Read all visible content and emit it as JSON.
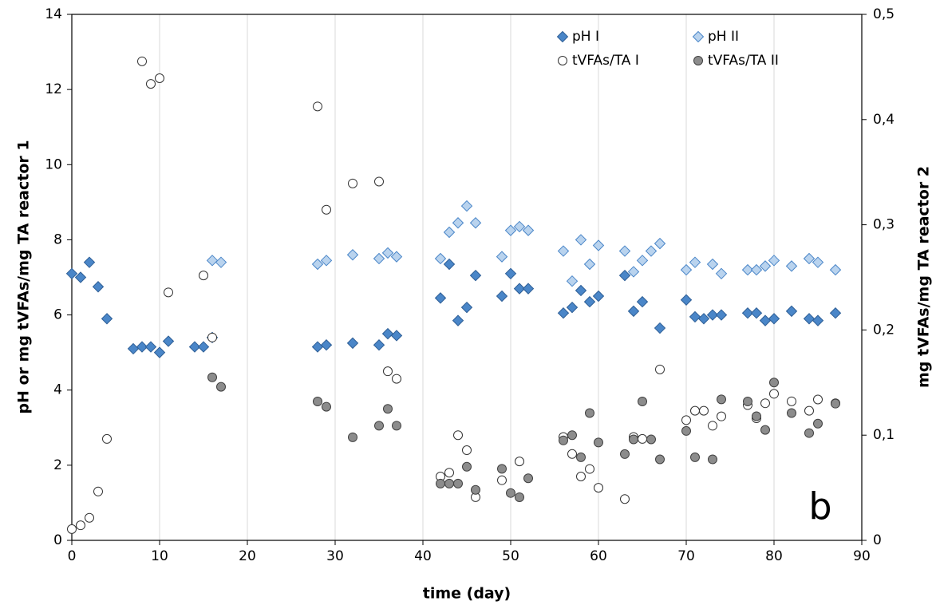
{
  "chart_data": {
    "type": "scatter",
    "xlabel": "time (day)",
    "ylabel": "pH or mg tVFAs/mg TA reactor 1",
    "y2label": "mg tVFAs/mg TA reactor 2",
    "annotation": "b",
    "xlim": [
      0,
      90
    ],
    "xticks": [
      0,
      10,
      20,
      30,
      40,
      50,
      60,
      70,
      80,
      90
    ],
    "ylim": [
      0,
      14
    ],
    "yticks": [
      0,
      2,
      4,
      6,
      8,
      10,
      12,
      14
    ],
    "y2lim": [
      0,
      0.5
    ],
    "y2ticks": [
      0,
      {
        "value": 0.1,
        "label": "0,1"
      },
      {
        "value": 0.2,
        "label": "0,2"
      },
      {
        "value": 0.3,
        "label": "0,3"
      },
      {
        "value": 0.4,
        "label": "0,4"
      },
      {
        "value": 0.5,
        "label": "0,5"
      }
    ],
    "grid": "x",
    "legend": "upper right",
    "series": [
      {
        "name": "pH I",
        "marker": "diamond",
        "color": "#4a86c8",
        "edgecolor": "#2f5f96",
        "x": [
          0,
          1,
          2,
          3,
          4,
          7,
          8,
          9,
          10,
          11,
          14,
          15,
          16,
          28,
          29,
          32,
          35,
          36,
          37,
          42,
          43,
          44,
          45,
          46,
          49,
          50,
          51,
          52,
          56,
          57,
          58,
          59,
          60,
          63,
          64,
          65,
          67,
          70,
          71,
          72,
          73,
          74,
          77,
          78,
          79,
          80,
          82,
          84,
          85,
          87
        ],
        "values": [
          7.1,
          7.0,
          7.4,
          6.75,
          5.9,
          5.1,
          5.15,
          5.15,
          5.0,
          5.3,
          5.15,
          5.15,
          5.4,
          5.15,
          5.2,
          5.25,
          5.2,
          5.5,
          5.45,
          6.45,
          7.35,
          5.85,
          6.2,
          7.05,
          6.5,
          7.1,
          6.7,
          6.7,
          6.05,
          6.2,
          6.65,
          6.35,
          6.5,
          7.05,
          6.1,
          6.35,
          5.65,
          6.4,
          5.95,
          5.9,
          6.0,
          6.0,
          6.05,
          6.05,
          5.85,
          5.9,
          6.1,
          5.9,
          5.85,
          6.05
        ]
      },
      {
        "name": "pH II",
        "marker": "diamond",
        "color": "#b9d3ee",
        "edgecolor": "#4a86c8",
        "x": [
          16,
          17,
          28,
          29,
          32,
          35,
          36,
          37,
          42,
          43,
          44,
          45,
          46,
          49,
          50,
          51,
          52,
          56,
          57,
          58,
          59,
          60,
          63,
          64,
          65,
          66,
          67,
          70,
          71,
          73,
          74,
          77,
          78,
          79,
          80,
          82,
          84,
          85,
          87
        ],
        "values": [
          7.45,
          7.4,
          7.35,
          7.45,
          7.6,
          7.5,
          7.65,
          7.55,
          7.5,
          8.2,
          8.45,
          8.9,
          8.45,
          7.55,
          8.25,
          8.35,
          8.25,
          7.7,
          6.9,
          8.0,
          7.35,
          7.85,
          7.7,
          7.15,
          7.45,
          7.7,
          7.9,
          7.2,
          7.4,
          7.35,
          7.1,
          7.2,
          7.2,
          7.3,
          7.45,
          7.3,
          7.5,
          7.4,
          7.2
        ]
      },
      {
        "name": "tVFAs/TA I",
        "marker": "circle",
        "color": "#ffffff",
        "edgecolor": "#333333",
        "x": [
          0,
          1,
          2,
          3,
          4,
          8,
          9,
          10,
          11,
          15,
          16,
          28,
          29,
          32,
          35,
          36,
          37,
          42,
          43,
          44,
          45,
          46,
          49,
          51,
          56,
          57,
          58,
          59,
          60,
          63,
          64,
          65,
          67,
          70,
          71,
          72,
          73,
          74,
          77,
          78,
          79,
          80,
          82,
          84,
          85,
          87
        ],
        "values": [
          0.3,
          0.4,
          0.6,
          1.3,
          2.7,
          12.75,
          12.15,
          12.3,
          6.6,
          7.05,
          5.4,
          11.55,
          8.8,
          9.5,
          9.55,
          4.5,
          4.3,
          1.7,
          1.8,
          2.8,
          2.4,
          1.15,
          1.6,
          2.1,
          2.75,
          2.3,
          1.7,
          1.9,
          1.4,
          1.1,
          2.75,
          2.7,
          4.55,
          3.2,
          3.45,
          3.45,
          3.05,
          3.3,
          3.6,
          3.25,
          3.65,
          3.9,
          3.7,
          3.45,
          3.75,
          3.65
        ]
      },
      {
        "name": "tVFAs/TA II",
        "marker": "circle",
        "color": "#8c8c8c",
        "edgecolor": "#404040",
        "axis": "y2",
        "x": [
          16,
          17,
          28,
          29,
          32,
          35,
          36,
          37,
          42,
          43,
          44,
          45,
          46,
          49,
          50,
          51,
          52,
          56,
          57,
          58,
          59,
          60,
          63,
          64,
          65,
          66,
          67,
          70,
          71,
          73,
          74,
          77,
          78,
          79,
          80,
          82,
          84,
          85,
          87
        ],
        "values": [
          0.155,
          0.146,
          0.132,
          0.127,
          0.098,
          0.109,
          0.125,
          0.109,
          0.054,
          0.054,
          0.054,
          0.07,
          0.048,
          0.068,
          0.045,
          0.041,
          0.059,
          0.095,
          0.1,
          0.079,
          0.121,
          0.093,
          0.082,
          0.096,
          0.132,
          0.096,
          0.077,
          0.104,
          0.079,
          0.077,
          0.134,
          0.132,
          0.118,
          0.105,
          0.15,
          0.121,
          0.102,
          0.111,
          0.13
        ]
      }
    ]
  }
}
